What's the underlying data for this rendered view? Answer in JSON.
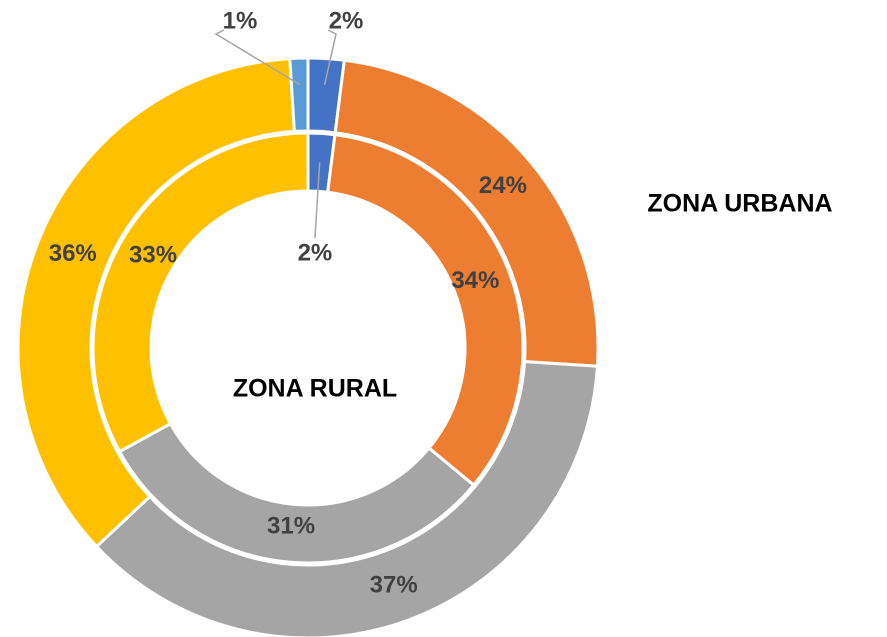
{
  "chart_data": {
    "type": "donut",
    "series": [
      {
        "name": "ZONA URBANA",
        "values": [
          2,
          24,
          37,
          36,
          1
        ],
        "value_labels": [
          "2%",
          "24%",
          "37%",
          "36%",
          "1%"
        ],
        "colors": [
          "#4472c4",
          "#ed7d31",
          "#a5a5a5",
          "#ffc000",
          "#5b9bd5"
        ]
      },
      {
        "name": "ZONA RURAL",
        "values": [
          2,
          34,
          31,
          33
        ],
        "value_labels": [
          "2%",
          "34%",
          "31%",
          "33%"
        ],
        "colors": [
          "#4472c4",
          "#ed7d31",
          "#a5a5a5",
          "#ffc000"
        ]
      }
    ]
  }
}
